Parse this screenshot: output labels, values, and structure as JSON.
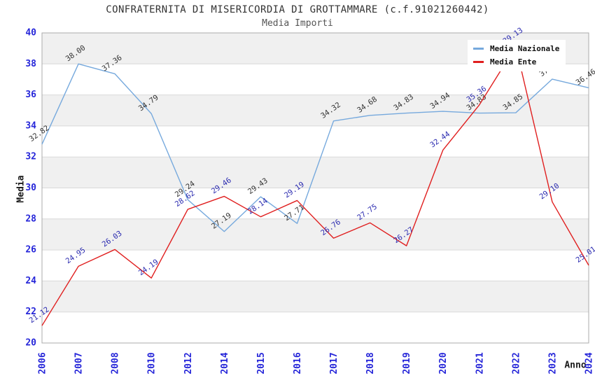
{
  "chart_data": {
    "type": "line",
    "title": "CONFRATERNITA DI MISERICORDIA DI GROTTAMMARE (c.f.91021260442)",
    "subtitle": "Media Importi",
    "xlabel": "Anno",
    "ylabel": "Media",
    "categories": [
      "2006",
      "2007",
      "2008",
      "2010",
      "2012",
      "2014",
      "2015",
      "2016",
      "2017",
      "2018",
      "2019",
      "2020",
      "2021",
      "2022",
      "2023",
      "2024"
    ],
    "series": [
      {
        "name": "Media Nazionale",
        "color": "#76a9dd",
        "label_color": "#333333",
        "values": [
          32.82,
          38.0,
          37.36,
          34.79,
          29.24,
          27.19,
          29.43,
          27.71,
          34.32,
          34.68,
          34.83,
          34.94,
          34.83,
          34.85,
          37.02,
          36.46
        ]
      },
      {
        "name": "Media Ente",
        "color": "#e01f1f",
        "label_color": "#2b2bb0",
        "values": [
          21.12,
          24.95,
          26.03,
          24.19,
          28.62,
          29.46,
          28.14,
          29.19,
          26.76,
          27.75,
          26.27,
          32.44,
          35.36,
          39.13,
          29.1,
          25.01
        ]
      }
    ],
    "ylim": [
      20,
      40
    ],
    "y_tick_step": 2,
    "y_ticks": [
      20,
      22,
      24,
      26,
      28,
      30,
      32,
      34,
      36,
      38,
      40
    ],
    "grid": true,
    "legend_position": "top-right",
    "colors": {
      "axis_tick_label": "#2626d9",
      "band_dark": "#f0f0f0",
      "band_light": "#ffffff",
      "gridline": "#d9d9d9",
      "plot_border": "#ababab"
    }
  }
}
